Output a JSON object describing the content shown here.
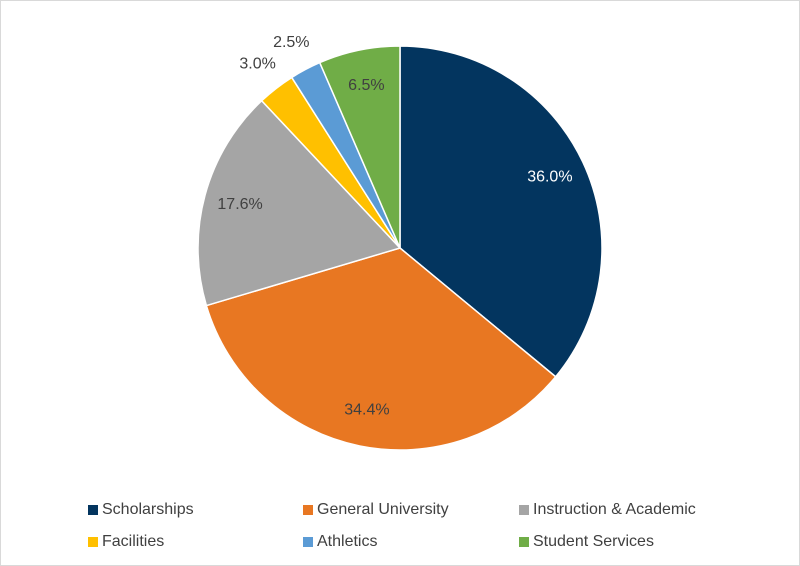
{
  "chart_data": {
    "type": "pie",
    "categories": [
      "Scholarships",
      "General University",
      "Instruction & Academic",
      "Facilities",
      "Athletics",
      "Student Services"
    ],
    "values": [
      36.0,
      34.4,
      17.6,
      3.0,
      2.5,
      6.5
    ],
    "value_labels": [
      "36.0%",
      "34.4%",
      "17.6%",
      "3.0%",
      "2.5%",
      "6.5%"
    ],
    "colors": [
      "#03355f",
      "#e87722",
      "#a5a5a5",
      "#ffc000",
      "#5b9bd5",
      "#70ad47"
    ],
    "label_colors": [
      "#ffffff",
      "#404040",
      "#404040",
      "#404040",
      "#404040",
      "#404040"
    ],
    "legend": "bottom"
  }
}
